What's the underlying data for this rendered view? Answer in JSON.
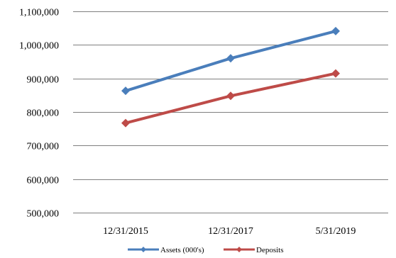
{
  "chart_data": {
    "type": "line",
    "categories": [
      "12/31/2015",
      "12/31/2017",
      "5/31/2019"
    ],
    "series": [
      {
        "name": "Assets (000's)",
        "values": [
          863000,
          960000,
          1041000
        ],
        "color": "#4A7EBB",
        "marker": "diamond"
      },
      {
        "name": "Deposits",
        "values": [
          767000,
          848000,
          915000
        ],
        "color": "#BE4B48",
        "marker": "diamond"
      }
    ],
    "ylim": [
      500000,
      1100000
    ],
    "yticks": [
      "500,000",
      "600,000",
      "700,000",
      "800,000",
      "900,000",
      "1,000,000",
      "1,100,000"
    ],
    "ytick_values": [
      500000,
      600000,
      700000,
      800000,
      900000,
      1000000,
      1100000
    ],
    "grid": true,
    "legend_position": "bottom",
    "title": "",
    "xlabel": "",
    "ylabel": ""
  }
}
